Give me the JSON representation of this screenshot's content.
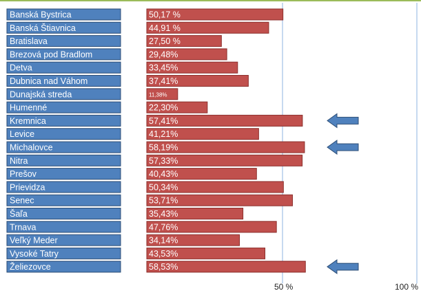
{
  "chart_data": {
    "type": "bar",
    "orientation": "horizontal",
    "categories": [
      "Banská Bystrica",
      "Banská Štiavnica",
      "Bratislava",
      "Brezová pod Bradlom",
      "Detva",
      "Dubnica nad Váhom",
      "Dunajská streda",
      "Humenné",
      "Kremnica",
      "Levice",
      "Michalovce",
      "Nitra",
      "Prešov",
      "Prievidza",
      "Senec",
      "Šaľa",
      "Trnava",
      "Veľký Meder",
      "Vysoké Tatry",
      "Želiezovce"
    ],
    "values": [
      50.17,
      44.91,
      27.5,
      29.48,
      33.45,
      37.41,
      11.38,
      22.3,
      57.41,
      41.21,
      58.19,
      57.33,
      40.43,
      50.34,
      53.71,
      35.43,
      47.76,
      34.14,
      43.53,
      58.53
    ],
    "value_labels": [
      "50,17 %",
      "44,91 %",
      "27,50 %",
      "29,48%",
      "33,45%",
      "37,41%",
      "11,38%",
      "22,30%",
      "57,41%",
      "41,21%",
      "58,19%",
      "57,33%",
      "40,43%",
      "50,34%",
      "53,71%",
      "35,43%",
      "47,76%",
      "34,14%",
      "43,53%",
      "58,53%"
    ],
    "xlim": [
      0,
      100
    ],
    "ticks": [
      {
        "value": 50,
        "label": "50 %"
      },
      {
        "value": 100,
        "label": "100 %"
      }
    ],
    "highlighted": [
      "Kremnica",
      "Michalovce",
      "Želiezovce"
    ],
    "colors": {
      "bar": "#c0504d",
      "bar_border": "#8c2f2c",
      "label_box": "#4f81bd",
      "label_border": "#2c4d75",
      "gridline": "#8db3e2",
      "arrow": "#4f81bd",
      "arrow_border": "#2c4d75",
      "top_line": "#9bbb59"
    }
  }
}
